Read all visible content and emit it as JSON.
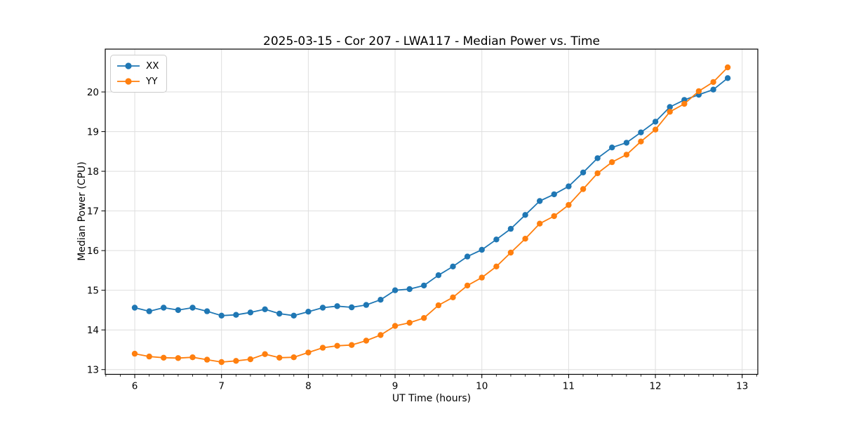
{
  "figure": {
    "title": "2025-03-15 - Cor 207 - LWA117 - Median Power vs. Time",
    "xlabel": "UT Time (hours)",
    "ylabel": "Median Power (CPU)"
  },
  "chart_data": {
    "type": "line",
    "title": "2025-03-15 - Cor 207 - LWA117 - Median Power vs. Time",
    "xlabel": "UT Time (hours)",
    "ylabel": "Median Power (CPU)",
    "grid": true,
    "legend_position": "upper left",
    "xlim": [
      5.66,
      13.18
    ],
    "ylim": [
      12.88,
      21.08
    ],
    "xticks": [
      6,
      7,
      8,
      9,
      10,
      11,
      12,
      13
    ],
    "yticks": [
      13,
      14,
      15,
      16,
      17,
      18,
      19,
      20
    ],
    "x_minor_step": 0.1666667,
    "grid_color": "#dedede",
    "x": [
      6.0,
      6.167,
      6.333,
      6.5,
      6.667,
      6.833,
      7.0,
      7.167,
      7.333,
      7.5,
      7.667,
      7.833,
      8.0,
      8.167,
      8.333,
      8.5,
      8.667,
      8.833,
      9.0,
      9.167,
      9.333,
      9.5,
      9.667,
      9.833,
      10.0,
      10.167,
      10.333,
      10.5,
      10.667,
      10.833,
      11.0,
      11.167,
      11.333,
      11.5,
      11.667,
      11.833,
      12.0,
      12.167,
      12.333,
      12.5,
      12.667,
      12.833
    ],
    "series": [
      {
        "name": "XX",
        "color": "#1f77b4",
        "values": [
          14.56,
          14.47,
          14.56,
          14.5,
          14.56,
          14.47,
          14.36,
          14.38,
          14.44,
          14.52,
          14.41,
          14.36,
          14.46,
          14.56,
          14.6,
          14.57,
          14.63,
          14.76,
          15.0,
          15.03,
          15.12,
          15.38,
          15.6,
          15.85,
          16.02,
          16.28,
          16.55,
          16.9,
          17.25,
          17.42,
          17.62,
          17.97,
          18.33,
          18.6,
          18.72,
          18.98,
          19.25,
          19.62,
          19.8,
          19.93,
          20.06,
          20.35
        ]
      },
      {
        "name": "YY",
        "color": "#ff7f0e",
        "values": [
          13.4,
          13.33,
          13.3,
          13.29,
          13.31,
          13.25,
          13.19,
          13.22,
          13.26,
          13.39,
          13.3,
          13.31,
          13.43,
          13.55,
          13.6,
          13.62,
          13.73,
          13.87,
          14.1,
          14.18,
          14.3,
          14.62,
          14.82,
          15.12,
          15.32,
          15.6,
          15.95,
          16.3,
          16.68,
          16.87,
          17.15,
          17.55,
          17.95,
          18.23,
          18.42,
          18.75,
          19.05,
          19.5,
          19.7,
          20.02,
          20.25,
          20.62
        ]
      }
    ]
  }
}
